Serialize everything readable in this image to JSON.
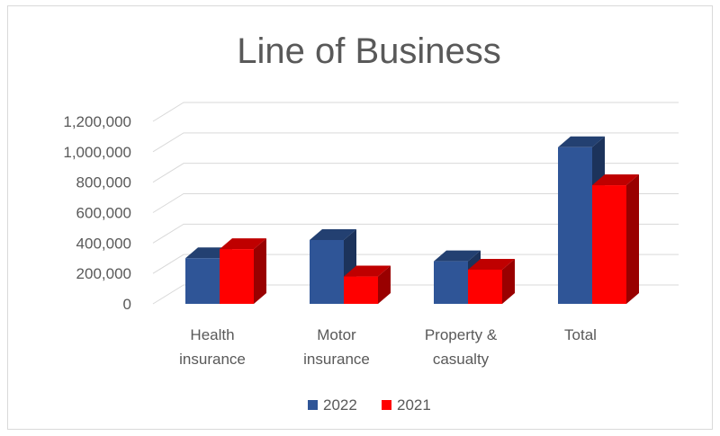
{
  "chart_data": {
    "type": "bar",
    "title": "Line of Business",
    "xlabel": "",
    "ylabel": "",
    "categories": [
      [
        "Health",
        "insurance"
      ],
      [
        "Motor",
        "insurance"
      ],
      [
        "Property &",
        "casualty"
      ],
      [
        "Total"
      ]
    ],
    "series": [
      {
        "name": "2022",
        "values": [
          300000,
          420000,
          280000,
          1030000
        ],
        "color": "#2f5597"
      },
      {
        "name": "2021",
        "values": [
          360000,
          180000,
          225000,
          780000
        ],
        "color": "#ff0000"
      }
    ],
    "ylim": [
      0,
      1200000
    ],
    "yticks": [
      0,
      200000,
      400000,
      600000,
      800000,
      1000000,
      1200000
    ],
    "ytick_labels": [
      "0",
      "200,000",
      "400,000",
      "600,000",
      "800,000",
      "1,000,000",
      "1,200,000"
    ],
    "grid": true,
    "legend": "bottom",
    "style": "3d-clustered-column"
  }
}
